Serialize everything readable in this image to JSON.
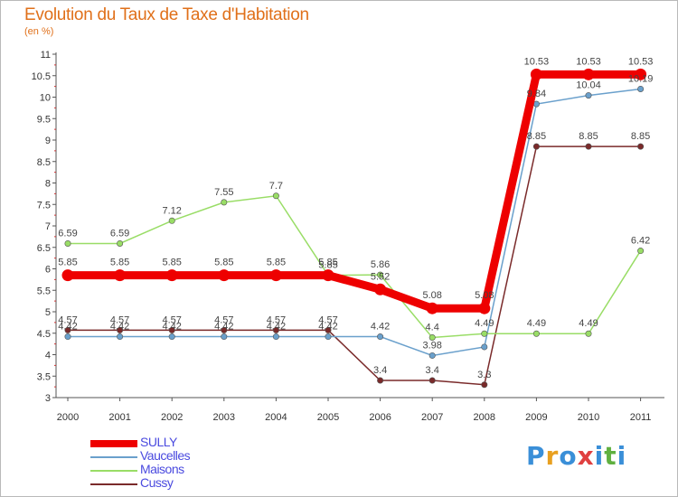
{
  "header": {
    "title": "Evolution du Taux de Taxe d'Habitation",
    "subtitle": "(en %)"
  },
  "logo": {
    "text": "Proxiti",
    "letters": [
      "P",
      "r",
      "o",
      "x",
      "i",
      "t",
      "i"
    ],
    "colors": [
      "#3a8fd8",
      "#e8a020",
      "#3a8fd8",
      "#e04040",
      "#3a8fd8",
      "#60b040",
      "#3a8fd8"
    ]
  },
  "chart_data": {
    "type": "line",
    "x": [
      "2000",
      "2001",
      "2002",
      "2003",
      "2004",
      "2005",
      "2006",
      "2007",
      "2008",
      "2009",
      "2010",
      "2011"
    ],
    "ylim": [
      3,
      11
    ],
    "yticks": [
      "3",
      "3.5",
      "4",
      "4.5",
      "5",
      "5.5",
      "6",
      "6.5",
      "7",
      "7.5",
      "8",
      "8.5",
      "9",
      "9.5",
      "10",
      "10.5",
      "11"
    ],
    "grid": false,
    "legend_position": "bottom-left",
    "series": [
      {
        "name": "SULLY",
        "color": "#ee0000",
        "values": [
          5.85,
          5.85,
          5.85,
          5.85,
          5.85,
          5.85,
          5.52,
          5.08,
          5.08,
          10.53,
          10.53,
          10.53
        ],
        "labels": [
          "5.85",
          "5.85",
          "5.85",
          "5.85",
          "5.85",
          "5.85",
          "5.52",
          "5.08",
          "5.08",
          "10.53",
          "10.53",
          "10.53"
        ]
      },
      {
        "name": "Vaucelles",
        "color": "#6aa0cc",
        "values": [
          4.42,
          4.42,
          4.42,
          4.42,
          4.42,
          4.42,
          4.42,
          3.98,
          4.18,
          9.84,
          10.04,
          10.19
        ],
        "labels": [
          "4.42",
          "4.42",
          "4.42",
          "4.42",
          "4.42",
          "4.42",
          "4.42",
          "3.98",
          "",
          "9.84",
          "10.04",
          "10.19"
        ]
      },
      {
        "name": "Maisons",
        "color": "#99dd66",
        "values": [
          6.59,
          6.59,
          7.12,
          7.55,
          7.7,
          5.85,
          5.86,
          4.4,
          4.49,
          4.49,
          4.49,
          6.42
        ],
        "labels": [
          "6.59",
          "6.59",
          "7.12",
          "7.55",
          "7.7",
          "5.85",
          "5.86",
          "4.4",
          "4.49",
          "4.49",
          "4.49",
          "6.42"
        ]
      },
      {
        "name": "Cussy",
        "color": "#7a2a2a",
        "values": [
          4.57,
          4.57,
          4.57,
          4.57,
          4.57,
          4.57,
          3.4,
          3.4,
          3.3,
          8.85,
          8.85,
          8.85
        ],
        "labels": [
          "4.57",
          "4.57",
          "4.57",
          "4.57",
          "4.57",
          "4.57",
          "3.4",
          "3.4",
          "3.3",
          "8.85",
          "8.85",
          "8.85"
        ]
      }
    ]
  }
}
